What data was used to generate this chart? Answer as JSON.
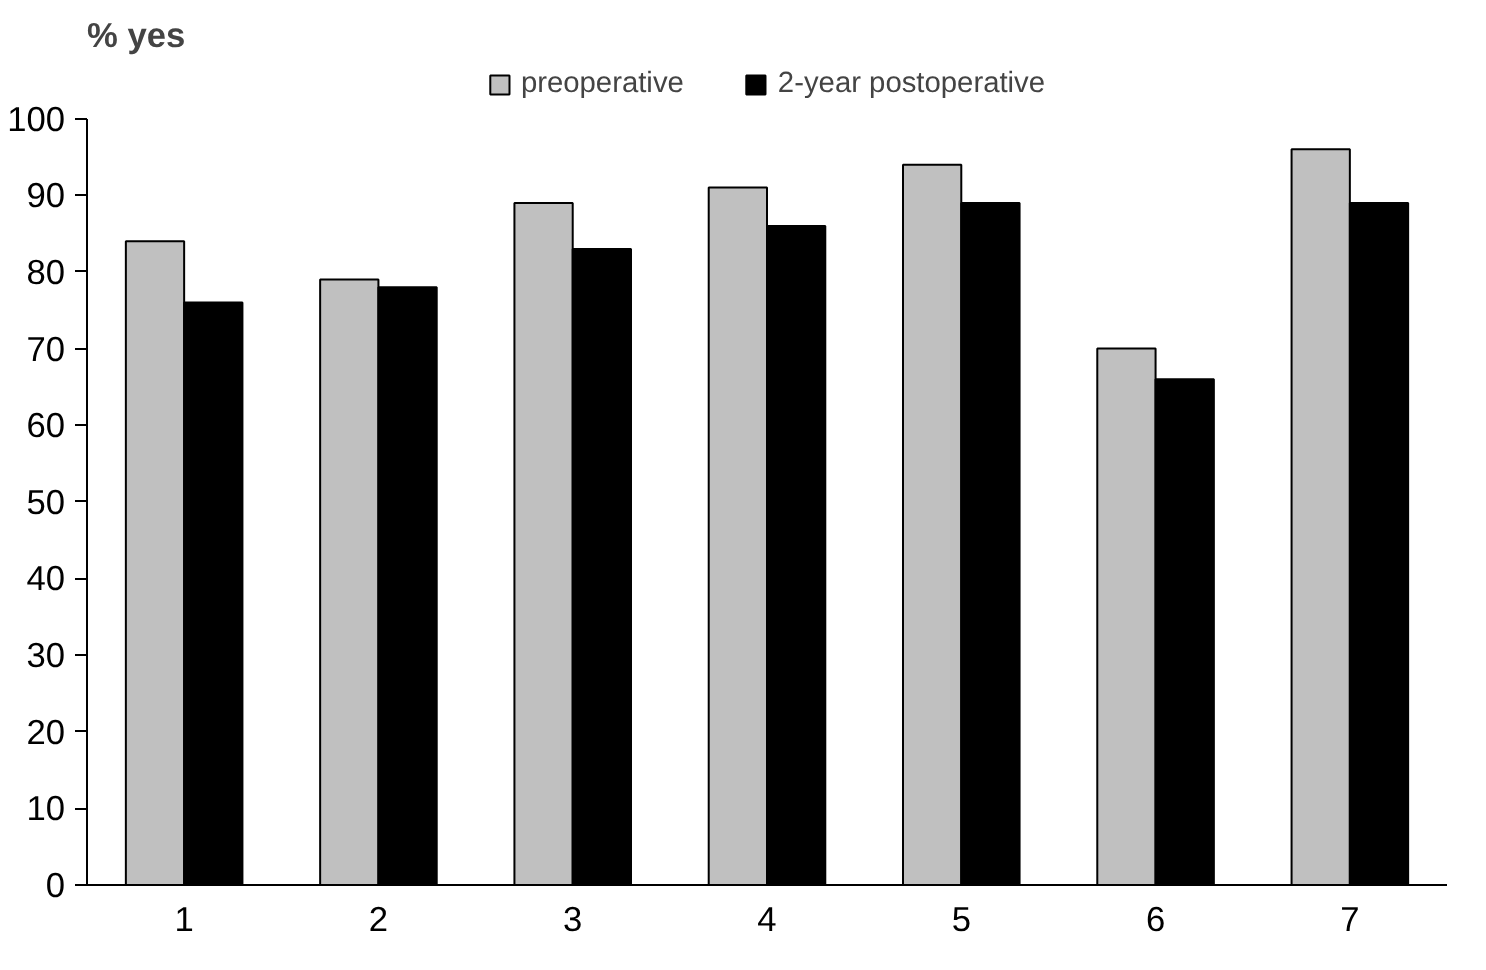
{
  "chart_data": {
    "type": "bar",
    "ylabel": "% yes",
    "categories": [
      "1",
      "2",
      "3",
      "4",
      "5",
      "6",
      "7"
    ],
    "series": [
      {
        "name": "preoperative",
        "color": "#c0c0c0",
        "values": [
          84,
          79,
          89,
          91,
          94,
          70,
          96
        ]
      },
      {
        "name": "2-year postoperative",
        "color": "#000000",
        "values": [
          76,
          78,
          83,
          86,
          89,
          66,
          89
        ]
      }
    ],
    "ylim": [
      0,
      100
    ],
    "yticks": [
      0,
      10,
      20,
      30,
      40,
      50,
      60,
      70,
      80,
      90,
      100
    ],
    "grid": false,
    "legend": "top"
  }
}
